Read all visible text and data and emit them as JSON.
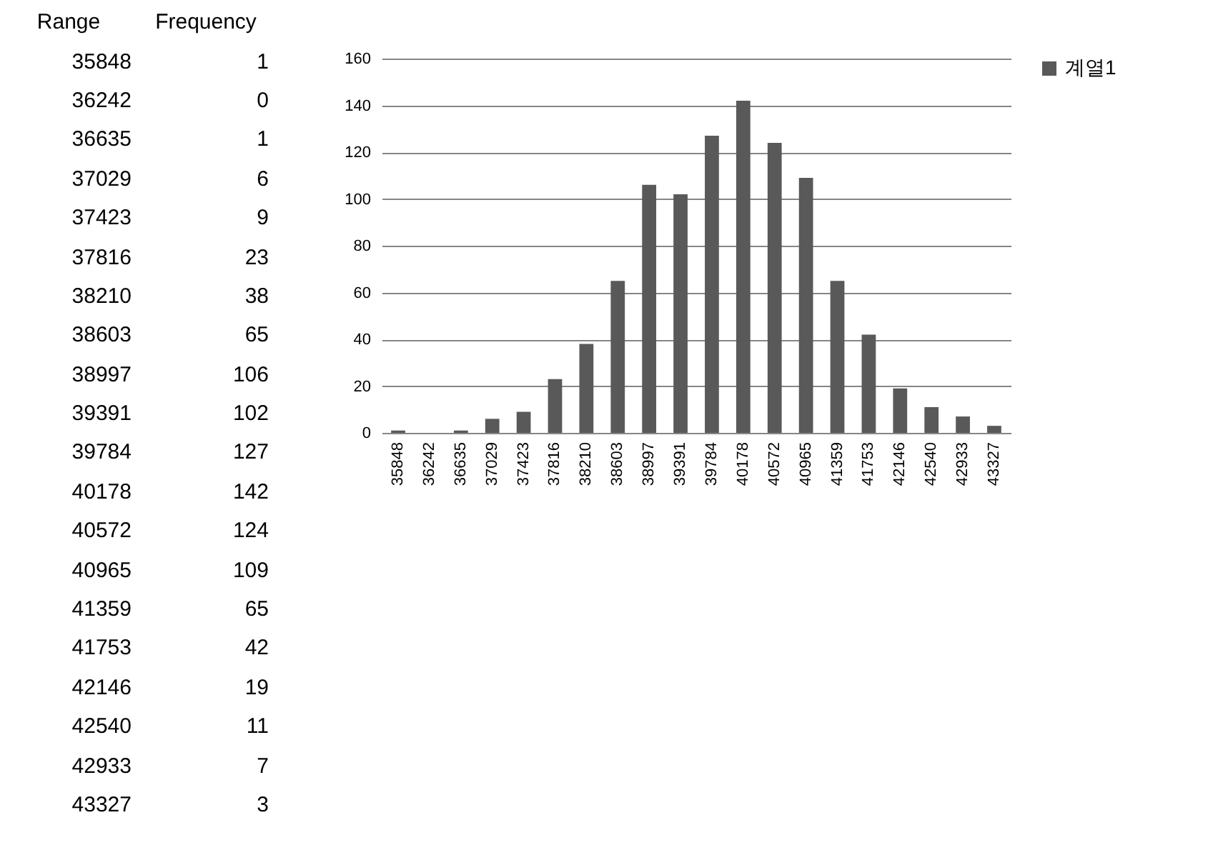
{
  "chart_data": {
    "type": "bar",
    "categories": [
      "35848",
      "36242",
      "36635",
      "37029",
      "37423",
      "37816",
      "38210",
      "38603",
      "38997",
      "39391",
      "39784",
      "40178",
      "40572",
      "40965",
      "41359",
      "41753",
      "42146",
      "42540",
      "42933",
      "43327"
    ],
    "series": [
      {
        "name": "계열1",
        "color": "#595959",
        "values": [
          1,
          0,
          1,
          6,
          9,
          23,
          38,
          65,
          106,
          102,
          127,
          142,
          124,
          109,
          65,
          42,
          19,
          11,
          7,
          3
        ]
      }
    ],
    "ylim": [
      0,
      160
    ],
    "yticks": [
      0,
      20,
      40,
      60,
      80,
      100,
      120,
      140,
      160
    ],
    "grid": "y",
    "legend": "right",
    "annotations": [
      "Range",
      "Frequency",
      "35848",
      "1",
      "36242",
      "0",
      "36635",
      "1",
      "37029",
      "6",
      "37423",
      "9",
      "37816",
      "23",
      "38210",
      "38",
      "38603",
      "65",
      "38997",
      "106",
      "39391",
      "102",
      "39784",
      "127",
      "40178",
      "142",
      "40572",
      "124",
      "40965",
      "109",
      "41359",
      "65",
      "41753",
      "42",
      "42146",
      "19",
      "42540",
      "11",
      "42933",
      "7",
      "43327",
      "3"
    ]
  }
}
